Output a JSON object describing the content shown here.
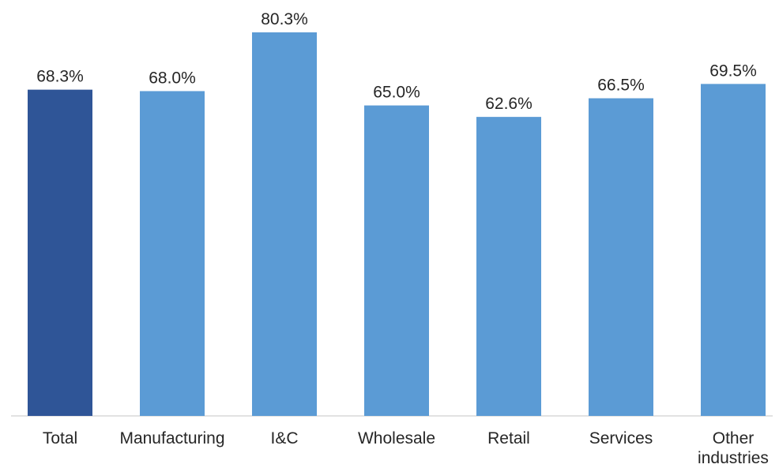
{
  "chart_data": {
    "type": "bar",
    "title": "",
    "xlabel": "",
    "ylabel": "",
    "ylim": [
      0,
      85
    ],
    "grid": false,
    "categories": [
      "Total",
      "Manufacturing",
      "I&C",
      "Wholesale",
      "Retail",
      "Services",
      "Other industries"
    ],
    "category_lines": [
      [
        "Total"
      ],
      [
        "Manufacturing"
      ],
      [
        "I&C"
      ],
      [
        "Wholesale"
      ],
      [
        "Retail"
      ],
      [
        "Services"
      ],
      [
        "Other",
        "industries"
      ]
    ],
    "values": [
      68.3,
      68.0,
      80.3,
      65.0,
      62.6,
      66.5,
      69.5
    ],
    "value_labels": [
      "68.3%",
      "68.0%",
      "80.3%",
      "65.0%",
      "62.6%",
      "66.5%",
      "69.5%"
    ],
    "colors": [
      "#2f5597",
      "#5b9bd5",
      "#5b9bd5",
      "#5b9bd5",
      "#5b9bd5",
      "#5b9bd5",
      "#5b9bd5"
    ],
    "axis_color": "#d9d9d9"
  }
}
